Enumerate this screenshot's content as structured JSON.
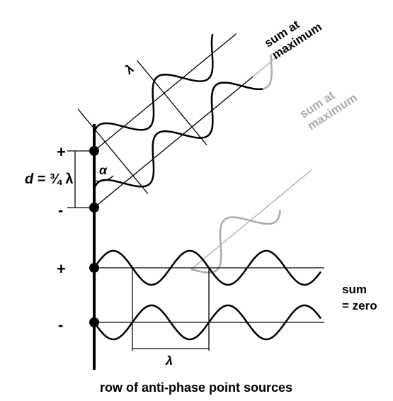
{
  "top_label": [
    "sum at",
    "maximum"
  ],
  "gray_label": [
    "sum at",
    "maximum"
  ],
  "signs": [
    "+",
    "-",
    "+",
    "-"
  ],
  "distance_label": {
    "symbol": "d",
    "text": " = ¾ λ"
  },
  "angle_label": "α",
  "top_wavelength": "λ",
  "bottom_wavelength": "λ",
  "zero_label": [
    "sum",
    "= zero"
  ],
  "caption": "row of anti-phase point sources"
}
